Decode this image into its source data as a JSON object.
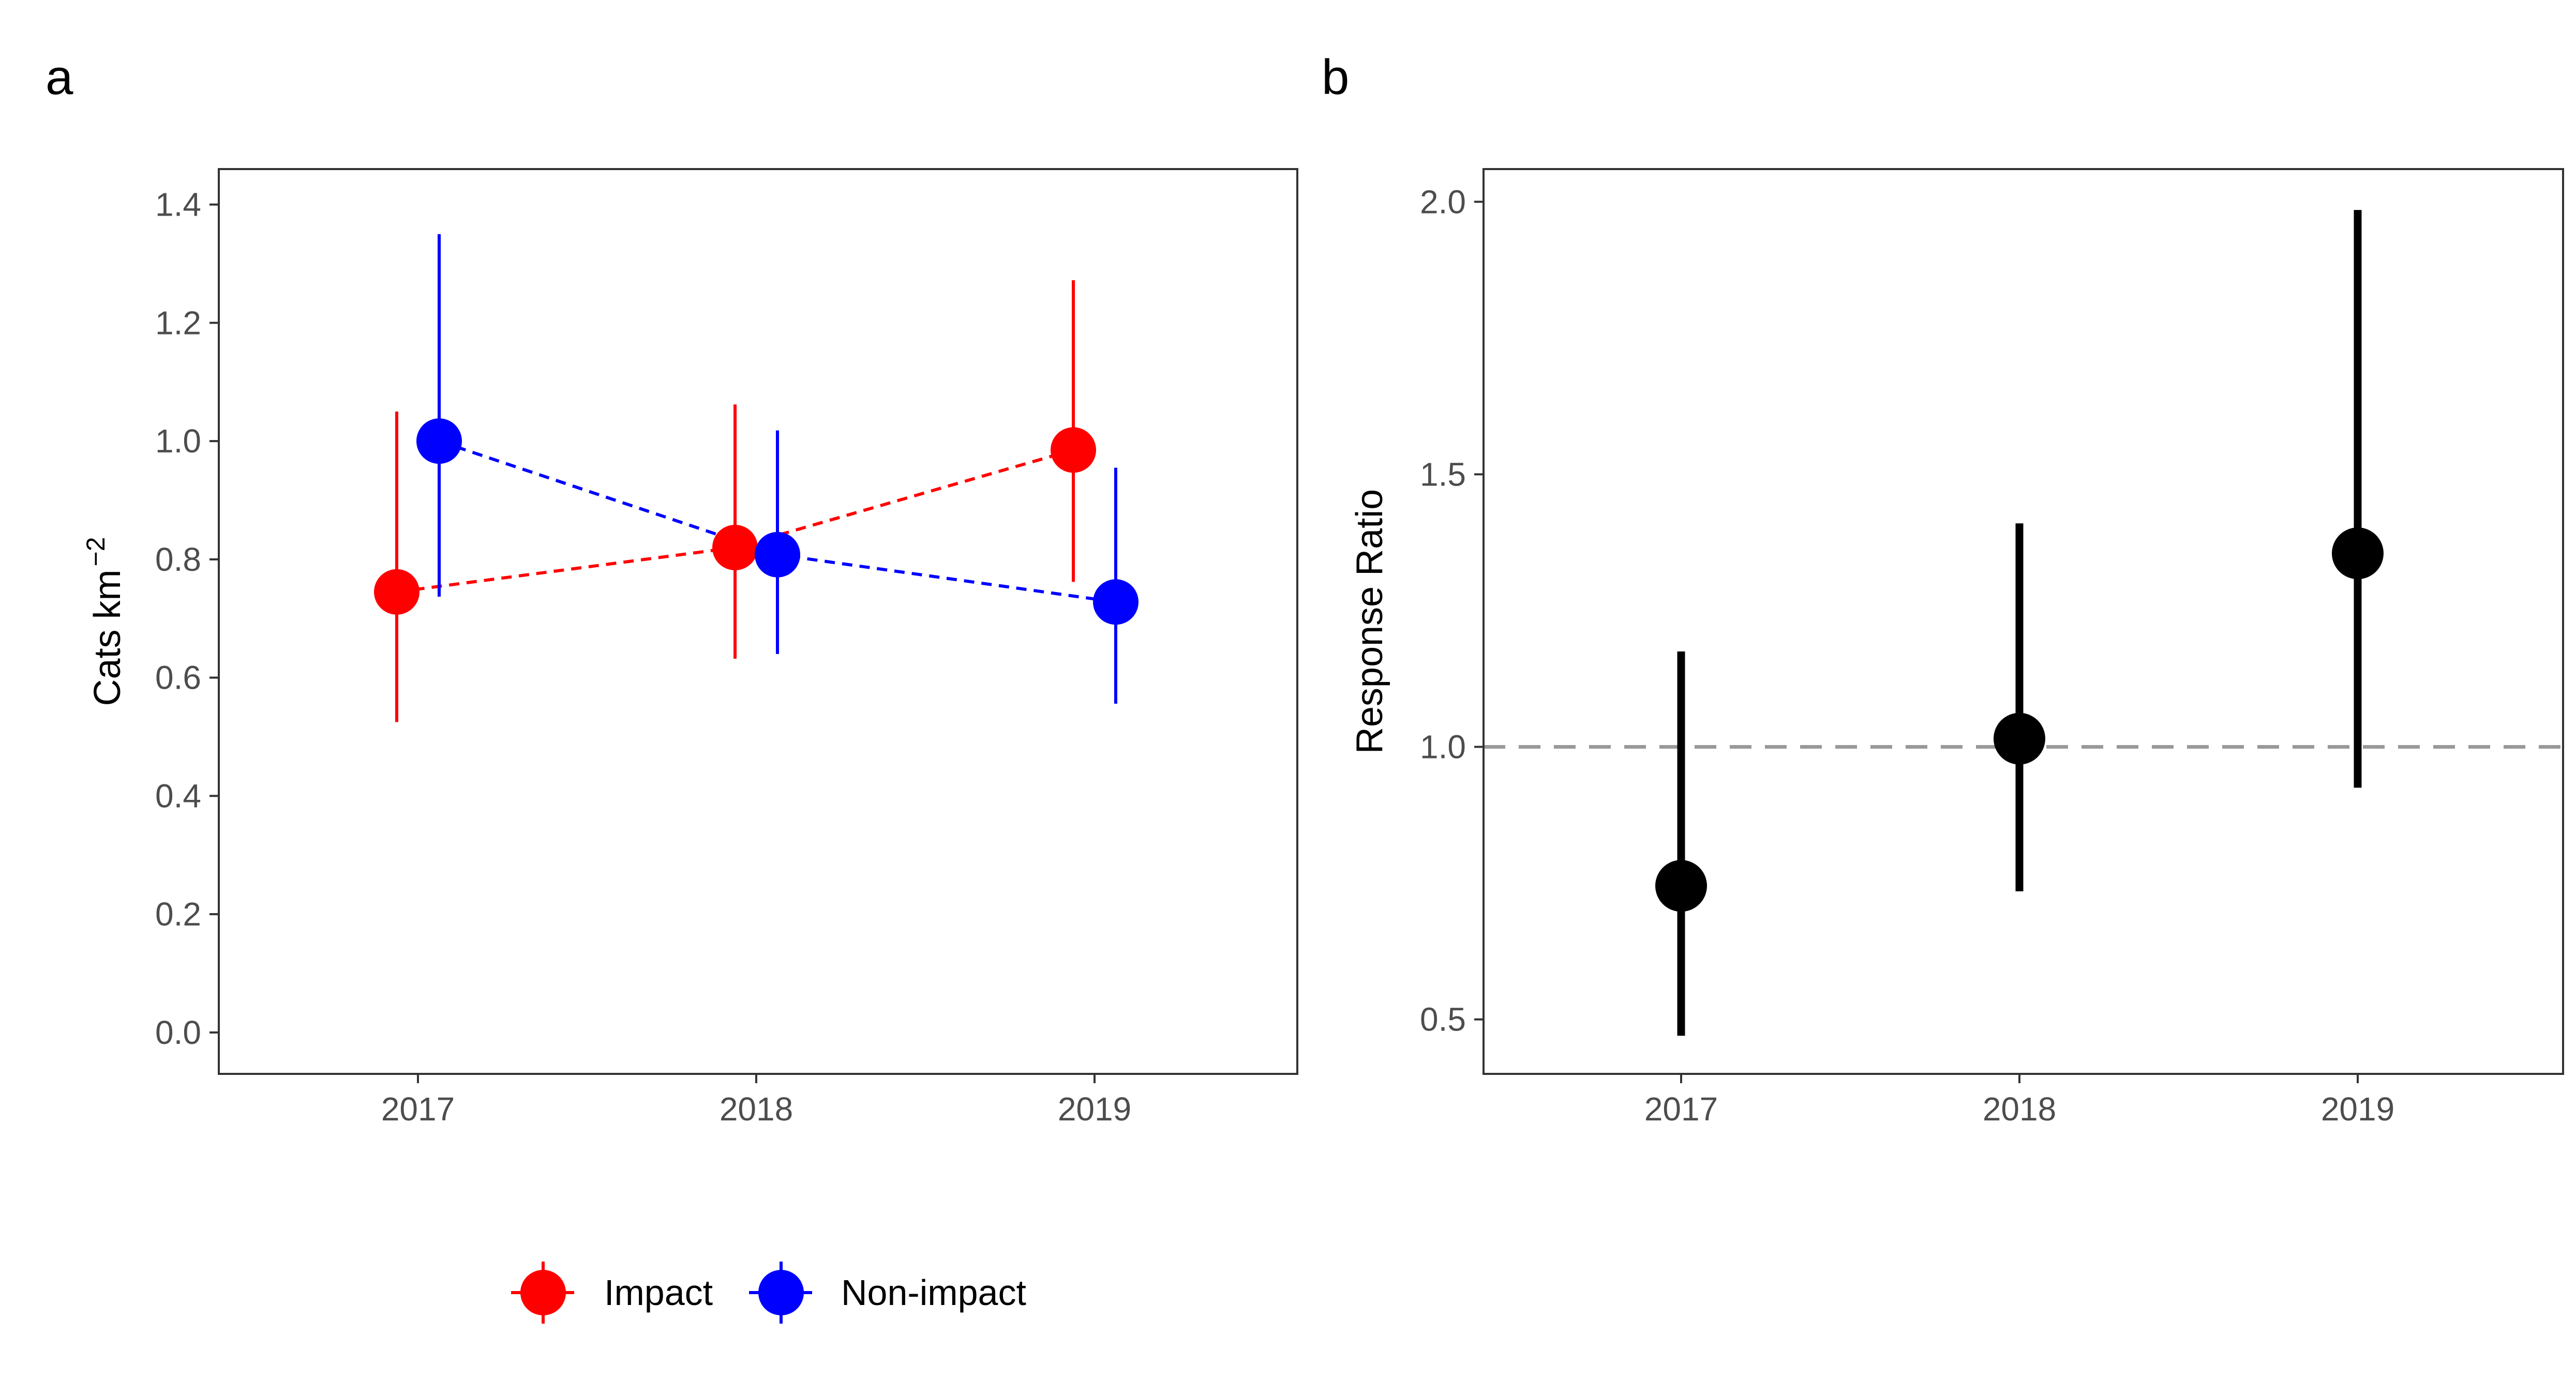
{
  "chart_data": [
    {
      "panel_label": "a",
      "type": "scatter",
      "x": [
        "2017",
        "2018",
        "2019"
      ],
      "ylabel": "Cats km",
      "ylabel_sup": "−2",
      "xlabel": "",
      "title": "",
      "ylim": [
        -0.07,
        1.46
      ],
      "yticks": [
        "0.0",
        "0.2",
        "0.4",
        "0.6",
        "0.8",
        "1.0",
        "1.2",
        "1.4"
      ],
      "grid": false,
      "legend_position": "bottom",
      "series": [
        {
          "name": "Impact",
          "color": "#ff0000",
          "values": [
            0.745,
            0.82,
            0.985
          ],
          "lower": [
            0.525,
            0.632,
            0.762
          ],
          "upper": [
            1.05,
            1.062,
            1.272
          ]
        },
        {
          "name": "Non-impact",
          "color": "#0000ff",
          "values": [
            1.0,
            0.808,
            0.728
          ],
          "lower": [
            0.737,
            0.64,
            0.556
          ],
          "upper": [
            1.35,
            1.018,
            0.955
          ]
        }
      ]
    },
    {
      "panel_label": "b",
      "type": "scatter",
      "x": [
        "2017",
        "2018",
        "2019"
      ],
      "ylabel": "Response Ratio",
      "xlabel": "",
      "title": "",
      "ylim": [
        0.4,
        2.06
      ],
      "yticks": [
        "0.5",
        "1.0",
        "1.5",
        "2.0"
      ],
      "reference_line": 1.0,
      "reference_color": "#999999",
      "grid": false,
      "series": [
        {
          "color": "#000000",
          "values": [
            0.745,
            1.015,
            1.355
          ],
          "lower": [
            0.47,
            0.735,
            0.925
          ],
          "upper": [
            1.175,
            1.41,
            1.985
          ]
        }
      ]
    }
  ]
}
